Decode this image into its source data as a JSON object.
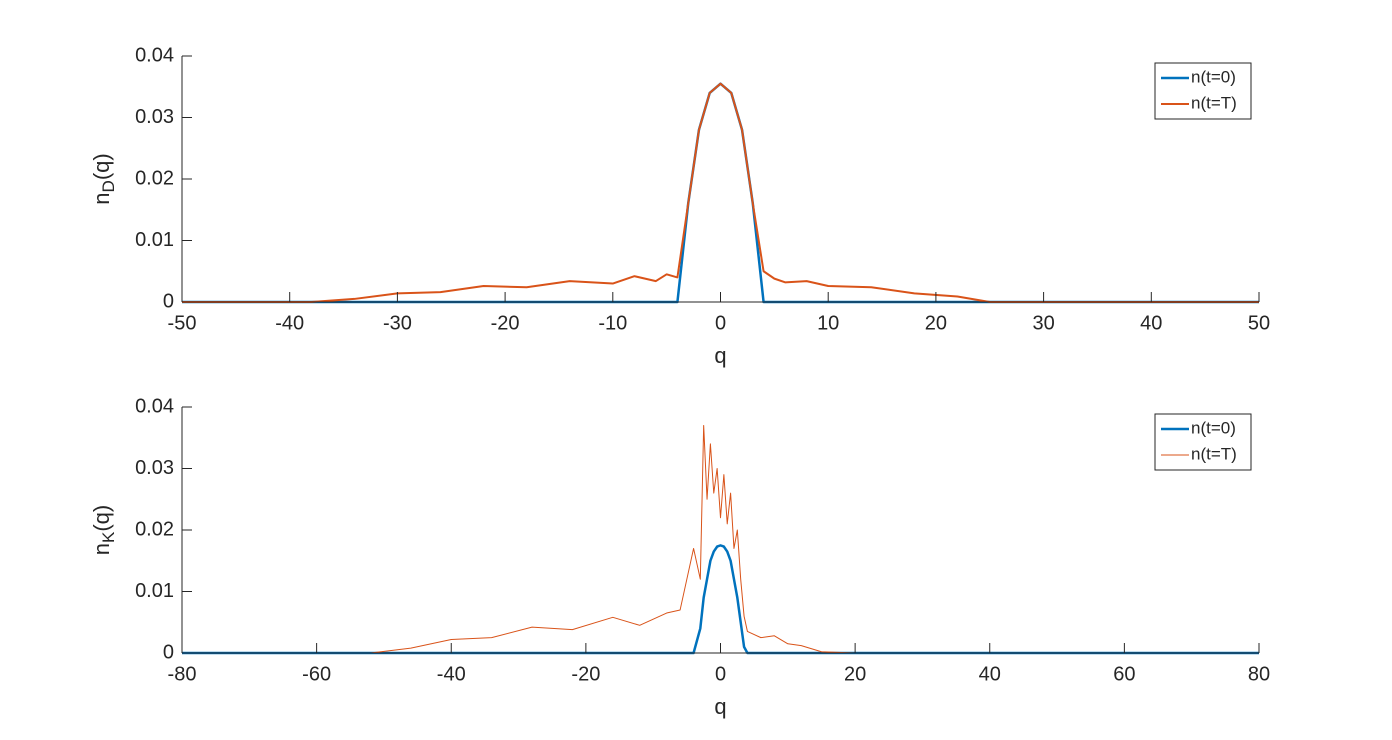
{
  "chart_data": [
    {
      "type": "line",
      "x": [
        -50,
        -38,
        -34,
        -30,
        -26,
        -22,
        -18,
        -14,
        -10,
        -8,
        -6,
        -5,
        -4,
        -3,
        -2,
        -1,
        0,
        1,
        2,
        3,
        4,
        5,
        6,
        8,
        10,
        14,
        18,
        22,
        25,
        30,
        50
      ],
      "series": [
        {
          "name": "n(t=0)",
          "color": "#0072bd",
          "line_width": 2.5,
          "values": [
            0,
            0,
            0,
            0,
            0,
            0,
            0,
            0,
            0,
            0,
            0,
            0,
            0,
            0.016,
            0.028,
            0.034,
            0.0355,
            0.034,
            0.028,
            0.016,
            0,
            0,
            0,
            0,
            0,
            0,
            0,
            0,
            0,
            0,
            0
          ]
        },
        {
          "name": "n(t=T)",
          "color": "#d95319",
          "line_width": 2,
          "values": [
            0,
            0,
            0.0005,
            0.0014,
            0.0016,
            0.0026,
            0.0024,
            0.0034,
            0.003,
            0.0042,
            0.0034,
            0.0045,
            0.004,
            0.016,
            0.028,
            0.034,
            0.0355,
            0.034,
            0.028,
            0.016,
            0.005,
            0.0038,
            0.0032,
            0.0034,
            0.0026,
            0.0024,
            0.0014,
            0.0009,
            0,
            0,
            0
          ]
        }
      ],
      "xlabel": "q",
      "ylabel": {
        "text": "n",
        "subscript": "D",
        "suffix": "(q)"
      },
      "xlim": [
        -50,
        50
      ],
      "xticks": [
        -50,
        -40,
        -30,
        -20,
        -10,
        0,
        10,
        20,
        30,
        40,
        50
      ],
      "ylim": [
        0,
        0.04
      ],
      "yticks": [
        0,
        0.01,
        0.02,
        0.03,
        0.04
      ],
      "legend": "northeast"
    },
    {
      "type": "line",
      "x": [
        -80,
        -52,
        -46,
        -40,
        -34,
        -28,
        -22,
        -16,
        -12,
        -8,
        -6,
        -4,
        -3,
        -2.5,
        -2,
        -1.5,
        -1,
        -0.5,
        0,
        0.5,
        1,
        1.5,
        2,
        2.5,
        3,
        3.5,
        4,
        6,
        8,
        10,
        12,
        15,
        20,
        80
      ],
      "series": [
        {
          "name": "n(t=0)",
          "color": "#0072bd",
          "line_width": 2.5,
          "values": [
            0,
            0,
            0,
            0,
            0,
            0,
            0,
            0,
            0,
            0,
            0,
            0,
            0.004,
            0.009,
            0.012,
            0.015,
            0.0165,
            0.0173,
            0.0175,
            0.0173,
            0.0165,
            0.015,
            0.012,
            0.009,
            0.005,
            0.001,
            0,
            0,
            0,
            0,
            0,
            0,
            0,
            0
          ]
        },
        {
          "name": "n(t=T)",
          "color": "#d95319",
          "line_width": 1,
          "values": [
            0,
            0,
            0.0008,
            0.0022,
            0.0025,
            0.0042,
            0.0038,
            0.0058,
            0.0045,
            0.0065,
            0.007,
            0.017,
            0.012,
            0.037,
            0.025,
            0.034,
            0.026,
            0.03,
            0.022,
            0.029,
            0.021,
            0.026,
            0.017,
            0.02,
            0.012,
            0.006,
            0.0035,
            0.0025,
            0.0028,
            0.0015,
            0.0012,
            0.0002,
            0,
            0
          ]
        }
      ],
      "xlabel": "q",
      "ylabel": {
        "text": "n",
        "subscript": "K",
        "suffix": "(q)"
      },
      "xlim": [
        -80,
        80
      ],
      "xticks": [
        -80,
        -60,
        -40,
        -20,
        0,
        20,
        40,
        60,
        80
      ],
      "ylim": [
        0,
        0.04
      ],
      "yticks": [
        0,
        0.01,
        0.02,
        0.03,
        0.04
      ],
      "legend": "northeast"
    }
  ]
}
